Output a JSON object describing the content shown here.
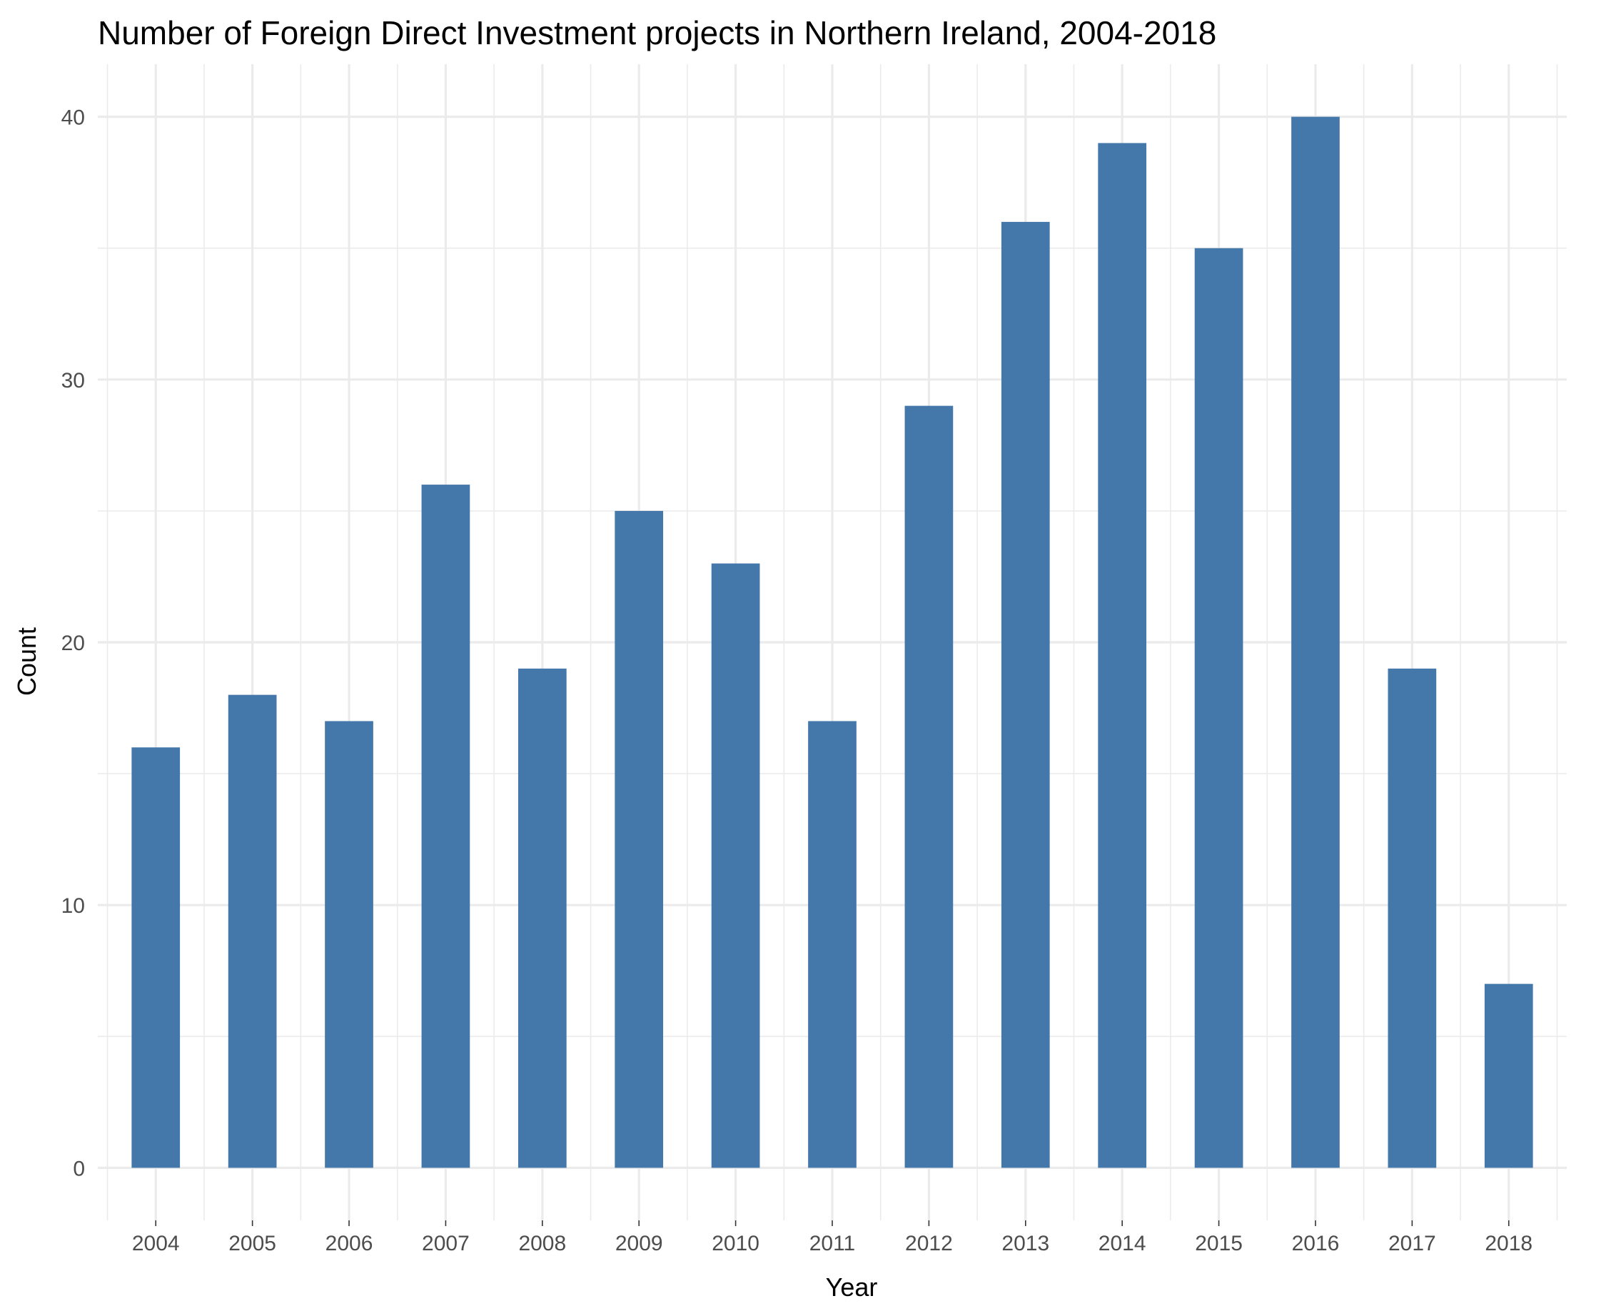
{
  "chart_data": {
    "type": "bar",
    "title": "Number of Foreign Direct Investment projects in Northern Ireland, 2004-2018",
    "xlabel": "Year",
    "ylabel": "Count",
    "categories": [
      "2004",
      "2005",
      "2006",
      "2007",
      "2008",
      "2009",
      "2010",
      "2011",
      "2012",
      "2013",
      "2014",
      "2015",
      "2016",
      "2017",
      "2018"
    ],
    "values": [
      16,
      18,
      17,
      26,
      19,
      25,
      23,
      17,
      29,
      36,
      39,
      35,
      40,
      19,
      7
    ],
    "ylim": [
      -2,
      42
    ],
    "yticks": [
      "0",
      "10",
      "20",
      "30",
      "40"
    ],
    "grid": true,
    "legend": "none",
    "bar_color": "#4477aa"
  }
}
